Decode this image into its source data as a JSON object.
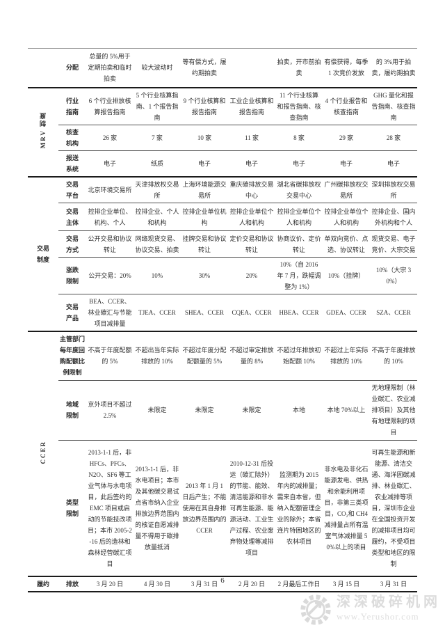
{
  "page": {
    "number": "6"
  },
  "watermark": {
    "icon": "gear-arrow",
    "text": "深深破碎机网",
    "url": "www.Yerushor.com",
    "color": "#d9d9d9"
  },
  "table": {
    "columns": 7,
    "groups": [
      {
        "label": "",
        "vertical": false,
        "rows": [
          {
            "label": "分配",
            "cells": [
              "总量的 5%用于定期拍卖和临时拍卖",
              "较大波动时",
              "等有偿方式，履约期拍卖",
              "",
              "拍卖，开市前拍卖",
              "有偿获得，每季 1 次竞价发放",
              "的 3%用于拍卖，履约期拍卖"
            ]
          }
        ]
      },
      {
        "label": "MRV 制度",
        "vertical": true,
        "rows": [
          {
            "label": "行业\n指南",
            "cells": [
              "6 个行业排放核算报告指南",
              "5 个行业核算指南、1 个报告指南",
              "9 个行业核算和报告指南",
              "工业企业核算和报告指南",
              "11 个行业核算和报告指南、核查指南",
              "4 个行业报告和核查指南",
              "GHG 量化和报告指南、核查指南"
            ]
          },
          {
            "label": "核查\n机构",
            "cells": [
              "26 家",
              "7 家",
              "10 家",
              "11 家",
              "8 家",
              "29 家",
              "28 家"
            ]
          },
          {
            "label": "报送\n系统",
            "cells": [
              "电子",
              "纸质",
              "电子",
              "电子",
              "电子",
              "电子",
              "电子"
            ]
          }
        ]
      },
      {
        "label": "交易\n制度",
        "vertical": false,
        "rows": [
          {
            "label": "交易\n平台",
            "cells": [
              "北京环境交易所",
              "天津排放权交易所",
              "上海环境能源交易所",
              "重庆碳排放交易中心",
              "湖北省碳排放权交易中心",
              "广州碳排放权交易所",
              "深圳排放权交易所"
            ]
          },
          {
            "label": "交易\n主体",
            "cells": [
              "控排企业单位、机构、个人",
              "控排企业、个人和机构",
              "控排企业单位机构",
              "控排企业单位个人和机构",
              "控排企业单位个人和机构",
              "控排企业单位个人和机构",
              "控排企业、国内外机构和个人"
            ]
          },
          {
            "label": "交易\n方式",
            "cells": [
              "公开交易和协议转让",
              "网络现货交易、协议交易、拍卖",
              "挂牌交易和协议转让",
              "定价交易和协议转让",
              "协商议价、定价转让",
              "单双向竞价、点选、协议转让",
              "现货交易、电子竞价、大宗交易"
            ]
          },
          {
            "label": "涨跌\n限制",
            "cells": [
              "公开交易：20%",
              "10%",
              "30%",
              "20%",
              "10%（自 2016 年 7 月，跌幅调整为 1%）",
              "10%（挂牌）",
              "10%（大宗 30%）"
            ]
          },
          {
            "label": "交易\n产品",
            "cells": [
              "BEA、CCER、林业碳汇与节能项目减排量",
              "TJEA、CCER",
              "SHEA、CCER",
              "CQEA、CCER",
              "HBEA、CCER",
              "GDEA、CCER",
              "SZA、CCER"
            ]
          }
        ]
      },
      {
        "label": "CCER",
        "vertical": true,
        "rows": [
          {
            "label": "主管部门\n每年度回\n购配额比\n例限制",
            "cells": [
              "不高于年度配额的 5%",
              "不超出当年实际排放的 10%",
              "不超过年度分配配额量的 5%",
              "不超过审定排放量的 8%",
              "不超过年排放初始配额 10%",
              "不超过上年实际排放的 10%",
              "不高于年度排放的 10%"
            ]
          },
          {
            "label": "地域\n限制",
            "cells": [
              "京外项目不超过 2.5%",
              "未限定",
              "未限定",
              "未限定",
              "本地",
              "本地 70%以上",
              "无地理限制（林业碳汇、农业减排项目）及其他有地理限制的项目"
            ]
          },
          {
            "label": "类型\n限制",
            "cells": [
              "2013-1-1 后，非 HFCs、PFCs、N2O、SF6 等工业气体与水电项目，此后签约的 EMC 项目或启动的节能技改项目；本市 2005-2-16 后的造林和森林经营碳汇项目",
              "2013-1-1 后，非水电项目；本市及其他碳交易试点省市纳入企业排放边界范围内的核证自愿减排量不得用于碳排放量抵消",
              "2013 年 1 月 1 日后产生；不能使用在其自身排放边界范围内的 CCER",
              "2010-12-31 后投运（碳汇除外）的节能、能效、清洁能源和非水可再生能源、能源活动、工业生产过程、农业废弃物处理等减排项目",
              "监测期为 2015 年内的减排量；需来自本省，但纳入配额管理企业的除外；本省连片特困地区的农林项目",
              "非水电及非化石能源发电、供热和余能利用项目，非第三类项目，CO₂和 CH4 减排量占所有温室气体减排量 50%以上的项目",
              "可再生能源和新能源、清洁交通、海洋固碳减排、林业碳汇、农业减排等项目，深圳市企业在全国投资开发的减排项目均可履约，不受项目类型和地区的限制"
            ]
          }
        ]
      },
      {
        "label": "履约",
        "vertical": false,
        "rows": [
          {
            "label": "排放",
            "cells": [
              "3 月 20 日",
              "4 月 30 日",
              "3 月 31 日",
              "2 月 20 日",
              "2 月最后工作日",
              "3 月 15 日",
              "3 月 31 日"
            ]
          }
        ]
      }
    ]
  }
}
